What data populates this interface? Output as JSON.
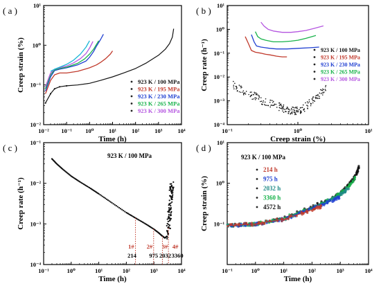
{
  "figure": {
    "panels": [
      {
        "label": "( a )"
      },
      {
        "label": "( b )"
      },
      {
        "label": "( c )"
      },
      {
        "label": "( d )"
      }
    ]
  },
  "colors": {
    "black": "#111111",
    "red": "#c0392b",
    "blue": "#1f3fd1",
    "green": "#17b24a",
    "violet": "#b455e0",
    "cyan": "#19b6d6",
    "teal": "#1f8a87",
    "annotation": "#c0392b"
  },
  "chart_data": [
    {
      "panel": "a",
      "type": "line",
      "xlabel": "Time (h)",
      "ylabel": "Creep strain (%)",
      "xscale": "log",
      "yscale": "log",
      "xlim": [
        0.01,
        10000
      ],
      "ylim": [
        0.01,
        10
      ],
      "xticks": [
        0.01,
        0.1,
        1,
        10,
        100,
        1000,
        10000
      ],
      "xticklabels": [
        "10⁻²",
        "10⁻¹",
        "10⁰",
        "10¹",
        "10²",
        "10³",
        "10⁴"
      ],
      "yticks": [
        0.01,
        0.1,
        1,
        10
      ],
      "yticklabels": [
        "10⁻²",
        "10⁻¹",
        "10⁰",
        "10¹"
      ],
      "legend_position": "lower-right",
      "series": [
        {
          "name": "923 K / 100 MPa",
          "color": "black",
          "x": [
            0.012,
            0.02,
            0.03,
            0.05,
            0.1,
            0.3,
            1,
            3,
            10,
            30,
            100,
            300,
            1000,
            2000,
            3000,
            4000,
            4572
          ],
          "y": [
            0.035,
            0.06,
            0.08,
            0.09,
            0.095,
            0.1,
            0.11,
            0.13,
            0.16,
            0.2,
            0.26,
            0.36,
            0.56,
            0.8,
            1.1,
            1.6,
            2.6
          ]
        },
        {
          "name": "923 K / 195 MPa",
          "color": "red",
          "x": [
            0.012,
            0.02,
            0.03,
            0.05,
            0.1,
            0.3,
            1,
            2,
            3,
            5,
            8,
            10
          ],
          "y": [
            0.06,
            0.13,
            0.18,
            0.2,
            0.2,
            0.22,
            0.27,
            0.32,
            0.37,
            0.46,
            0.6,
            0.72
          ]
        },
        {
          "name": "923 K / 230 MPa",
          "color": "blue",
          "x": [
            0.012,
            0.02,
            0.03,
            0.05,
            0.1,
            0.3,
            0.7,
            1,
            1.5,
            2,
            3,
            4
          ],
          "y": [
            0.07,
            0.16,
            0.23,
            0.25,
            0.27,
            0.32,
            0.4,
            0.5,
            0.7,
            0.95,
            1.4,
            1.9
          ]
        },
        {
          "name": "923 K / 265 MPa",
          "color": "green",
          "x": [
            0.012,
            0.02,
            0.03,
            0.05,
            0.1,
            0.3,
            0.6,
            1,
            1.5,
            2,
            2.5
          ],
          "y": [
            0.08,
            0.18,
            0.24,
            0.26,
            0.28,
            0.35,
            0.45,
            0.6,
            0.8,
            1.05,
            1.3
          ]
        },
        {
          "name": "923 K / 300 MPa",
          "color": "violet",
          "x": [
            0.012,
            0.02,
            0.03,
            0.05,
            0.1,
            0.2,
            0.4,
            0.7,
            1,
            1.4
          ],
          "y": [
            0.09,
            0.2,
            0.25,
            0.27,
            0.3,
            0.36,
            0.46,
            0.62,
            0.85,
            1.25
          ]
        },
        {
          "color": "cyan",
          "x": [
            0.02,
            0.03,
            0.05,
            0.1,
            0.2,
            0.4,
            0.7,
            1
          ],
          "y": [
            0.22,
            0.25,
            0.28,
            0.33,
            0.42,
            0.6,
            0.9,
            1.3
          ]
        }
      ]
    },
    {
      "panel": "b",
      "type": "scatter",
      "xlabel": "Creep strain (%)",
      "ylabel": "Creep rate (h⁻¹)",
      "xscale": "log",
      "yscale": "log",
      "xlim": [
        0.1,
        10
      ],
      "ylim": [
        0.0001,
        10
      ],
      "xticks": [
        0.1,
        1,
        10
      ],
      "xticklabels": [
        "10⁻¹",
        "10⁰",
        "10¹"
      ],
      "yticks": [
        0.0001,
        0.001,
        0.01,
        0.1,
        1,
        10
      ],
      "yticklabels": [
        "10⁻⁴",
        "10⁻³",
        "10⁻²",
        "10⁻¹",
        "10⁰",
        "10¹"
      ],
      "legend_position": "right",
      "series": [
        {
          "name": "923 K / 100 MPa",
          "color": "black",
          "x": [
            0.12,
            0.15,
            0.2,
            0.25,
            0.3,
            0.4,
            0.5,
            0.6,
            0.7,
            0.8,
            0.9,
            1.0,
            1.2,
            1.5,
            1.8,
            2.1,
            2.5
          ],
          "y": [
            0.005,
            0.003,
            0.002,
            0.0015,
            0.0011,
            0.0008,
            0.0006,
            0.0005,
            0.00045,
            0.0004,
            0.00035,
            0.0004,
            0.0005,
            0.0008,
            0.0013,
            0.002,
            0.0035
          ]
        },
        {
          "name": "923 K / 195 MPa",
          "color": "red",
          "x": [
            0.18,
            0.2,
            0.22,
            0.25,
            0.3,
            0.35,
            0.4,
            0.5,
            0.6,
            0.7
          ],
          "y": [
            0.5,
            0.25,
            0.13,
            0.11,
            0.1,
            0.09,
            0.085,
            0.075,
            0.07,
            0.07
          ]
        },
        {
          "name": "923 K / 230 MPa",
          "color": "blue",
          "x": [
            0.22,
            0.24,
            0.26,
            0.3,
            0.4,
            0.5,
            0.7,
            1.0,
            1.5,
            2.0
          ],
          "y": [
            0.6,
            0.3,
            0.2,
            0.18,
            0.16,
            0.15,
            0.15,
            0.16,
            0.17,
            0.18
          ]
        },
        {
          "name": "923 K / 265 MPa",
          "color": "green",
          "x": [
            0.25,
            0.27,
            0.3,
            0.35,
            0.45,
            0.6,
            0.8,
            1.0,
            1.3,
            1.8
          ],
          "y": [
            0.8,
            0.5,
            0.4,
            0.35,
            0.3,
            0.3,
            0.32,
            0.35,
            0.42,
            0.55
          ]
        },
        {
          "name": "923 K / 300 MPa",
          "color": "violet",
          "x": [
            0.3,
            0.33,
            0.38,
            0.45,
            0.6,
            0.8,
            1.0,
            1.3,
            1.7,
            2.3
          ],
          "y": [
            2.0,
            1.4,
            1.0,
            0.85,
            0.75,
            0.75,
            0.8,
            0.9,
            1.1,
            1.4
          ]
        }
      ]
    },
    {
      "panel": "c",
      "type": "scatter",
      "title": "923 K / 100 MPa",
      "xlabel": "Time (h)",
      "ylabel": "Creep rate (h⁻¹)",
      "xscale": "log",
      "yscale": "log",
      "xlim": [
        0.1,
        10000
      ],
      "ylim": [
        0.0001,
        0.1
      ],
      "xticks": [
        0.1,
        1,
        10,
        100,
        1000,
        10000
      ],
      "xticklabels": [
        "10⁻¹",
        "10⁰",
        "10¹",
        "10²",
        "10³",
        "10⁴"
      ],
      "yticks": [
        0.0001,
        0.001,
        0.01,
        0.1
      ],
      "yticklabels": [
        "10⁻⁴",
        "10⁻³",
        "10⁻²",
        "10⁻¹"
      ],
      "series": [
        {
          "color": "black",
          "x": [
            0.2,
            0.3,
            0.5,
            1,
            2,
            5,
            10,
            30,
            100,
            214,
            500,
            975,
            1500,
            2032,
            2500,
            3000,
            3360,
            3700,
            4000,
            4300,
            4572
          ],
          "y": [
            0.04,
            0.03,
            0.022,
            0.015,
            0.011,
            0.0075,
            0.0055,
            0.0033,
            0.0019,
            0.0014,
            0.001,
            0.00075,
            0.0006,
            0.0005,
            0.00045,
            0.0005,
            0.0008,
            0.0015,
            0.003,
            0.006,
            0.01
          ]
        }
      ],
      "annotations": {
        "times": [
          214,
          975,
          2032,
          3360
        ],
        "time_labels": [
          "214",
          "975",
          "2032",
          "3360"
        ],
        "stage_labels": [
          "1#",
          "2#",
          "3#",
          "4#"
        ],
        "stage_x": [
          150,
          700,
          2500,
          6000
        ]
      }
    },
    {
      "panel": "d",
      "type": "line",
      "title": "923 K / 100 MPa",
      "xlabel": "Time (h)",
      "ylabel": "Creep strain (%)",
      "xscale": "log",
      "yscale": "log",
      "xlim": [
        0.1,
        10000
      ],
      "ylim": [
        0.01,
        10
      ],
      "xticks": [
        0.1,
        1,
        10,
        100,
        1000,
        10000
      ],
      "xticklabels": [
        "10⁻¹",
        "10⁰",
        "10¹",
        "10²",
        "10³",
        "10⁴"
      ],
      "yticks": [
        0.1,
        1,
        10
      ],
      "yticklabels": [
        "10⁻¹",
        "10⁰",
        "10¹"
      ],
      "legend_position": "top-left",
      "series": [
        {
          "name": "214 h",
          "color": "red",
          "x": [
            0.1,
            1,
            10,
            100,
            214
          ],
          "y": [
            0.09,
            0.1,
            0.13,
            0.22,
            0.27
          ]
        },
        {
          "name": "975 h",
          "color": "blue",
          "x": [
            0.1,
            1,
            10,
            100,
            500,
            975
          ],
          "y": [
            0.09,
            0.1,
            0.13,
            0.24,
            0.37,
            0.47
          ]
        },
        {
          "name": "2032 h",
          "color": "teal",
          "x": [
            0.1,
            1,
            10,
            100,
            500,
            1000,
            2032
          ],
          "y": [
            0.09,
            0.1,
            0.13,
            0.24,
            0.4,
            0.52,
            0.78
          ]
        },
        {
          "name": "3360 h",
          "color": "green",
          "x": [
            0.1,
            1,
            10,
            100,
            500,
            1000,
            2000,
            3360
          ],
          "y": [
            0.09,
            0.1,
            0.14,
            0.25,
            0.41,
            0.55,
            0.85,
            1.35
          ]
        },
        {
          "name": "4572 h",
          "color": "black",
          "x": [
            0.1,
            1,
            10,
            100,
            500,
            1000,
            2000,
            3000,
            4000,
            4572
          ],
          "y": [
            0.09,
            0.1,
            0.14,
            0.26,
            0.42,
            0.56,
            0.9,
            1.3,
            1.9,
            2.6
          ]
        }
      ]
    }
  ]
}
